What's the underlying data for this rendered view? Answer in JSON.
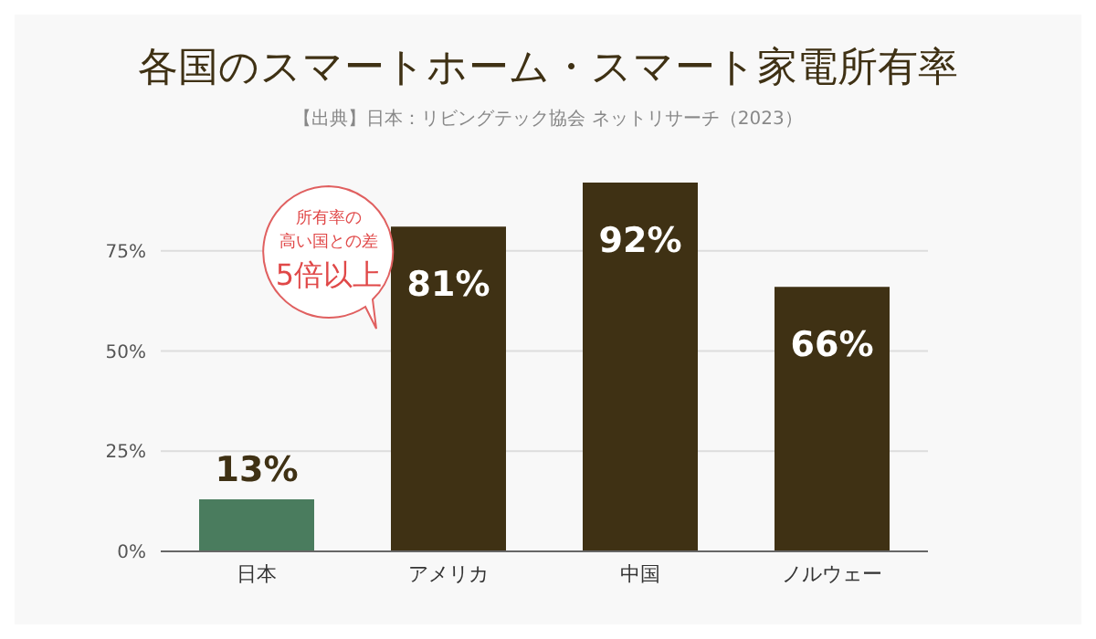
{
  "chart_data": {
    "type": "bar",
    "title": "各国のスマートホーム・スマート家電所有率",
    "subtitle": "【出典】日本：リビングテック協会 ネットリサーチ（2023）",
    "categories": [
      "日本",
      "アメリカ",
      "中国",
      "ノルウェー"
    ],
    "values": [
      13,
      81,
      92,
      66
    ],
    "colors": [
      "#4a7c5e",
      "#3f3114",
      "#3f3114",
      "#3f3114"
    ],
    "value_labels": [
      "13%",
      "81%",
      "92%",
      "66%"
    ],
    "ylim": [
      0,
      92
    ],
    "yticks": [
      {
        "value": 0,
        "label": "0%"
      },
      {
        "value": 25,
        "label": "25%"
      },
      {
        "value": 50,
        "label": "50%"
      },
      {
        "value": 75,
        "label": "75%"
      }
    ],
    "grid": "y",
    "annotations": [
      "所有率の",
      "高い国との差",
      "5倍以上"
    ]
  }
}
